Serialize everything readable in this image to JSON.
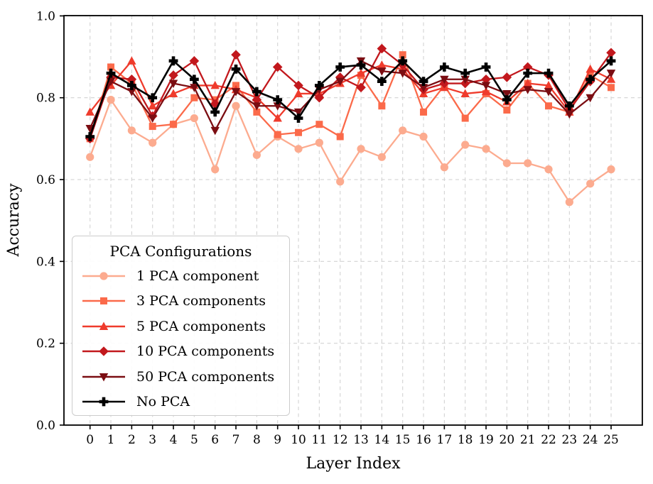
{
  "figure": {
    "background": "#ffffff"
  },
  "chart_data": {
    "type": "line",
    "title": "",
    "xlabel": "Layer Index",
    "ylabel": "Accuracy",
    "x": [
      0,
      1,
      2,
      3,
      4,
      5,
      6,
      7,
      8,
      9,
      10,
      11,
      12,
      13,
      14,
      15,
      16,
      17,
      18,
      19,
      20,
      21,
      22,
      23,
      24,
      25
    ],
    "xticklabels": [
      "0",
      "1",
      "2",
      "3",
      "4",
      "5",
      "6",
      "7",
      "8",
      "9",
      "10",
      "11",
      "12",
      "13",
      "14",
      "15",
      "16",
      "17",
      "18",
      "19",
      "20",
      "21",
      "22",
      "23",
      "24",
      "25"
    ],
    "ylim": [
      0.0,
      1.0
    ],
    "yticks": [
      0.0,
      0.2,
      0.4,
      0.6,
      0.8,
      1.0
    ],
    "yticklabels": [
      "0.0",
      "0.2",
      "0.4",
      "0.6",
      "0.8",
      "1.0"
    ],
    "grid": true,
    "grid_color": "#d3d3d3",
    "legend": {
      "title": "PCA Configurations",
      "position": "lower left"
    },
    "series": [
      {
        "name": "1 PCA component",
        "color": "#fcab8f",
        "marker": "circle",
        "values": [
          0.655,
          0.795,
          0.72,
          0.69,
          0.735,
          0.75,
          0.625,
          0.78,
          0.66,
          0.705,
          0.675,
          0.69,
          0.595,
          0.675,
          0.655,
          0.72,
          0.705,
          0.63,
          0.685,
          0.675,
          0.64,
          0.64,
          0.625,
          0.545,
          0.59,
          0.625
        ]
      },
      {
        "name": "3 PCA components",
        "color": "#fb6a4a",
        "marker": "square",
        "values": [
          0.7,
          0.875,
          0.835,
          0.73,
          0.735,
          0.8,
          0.795,
          0.83,
          0.765,
          0.71,
          0.715,
          0.735,
          0.705,
          0.855,
          0.78,
          0.905,
          0.765,
          0.83,
          0.75,
          0.81,
          0.77,
          0.835,
          0.78,
          0.765,
          0.855,
          0.825
        ]
      },
      {
        "name": "5 PCA components",
        "color": "#ef3b2c",
        "marker": "triangle-up",
        "values": [
          0.765,
          0.83,
          0.89,
          0.78,
          0.81,
          0.83,
          0.83,
          0.82,
          0.8,
          0.75,
          0.81,
          0.81,
          0.835,
          0.86,
          0.88,
          0.87,
          0.81,
          0.825,
          0.81,
          0.815,
          0.79,
          0.835,
          0.83,
          0.765,
          0.87,
          0.845
        ]
      },
      {
        "name": "10 PCA components",
        "color": "#c2181d",
        "marker": "diamond",
        "values": [
          0.7,
          0.85,
          0.845,
          0.755,
          0.855,
          0.89,
          0.785,
          0.905,
          0.795,
          0.875,
          0.83,
          0.8,
          0.85,
          0.825,
          0.92,
          0.88,
          0.82,
          0.835,
          0.835,
          0.845,
          0.85,
          0.875,
          0.855,
          0.77,
          0.84,
          0.91
        ]
      },
      {
        "name": "50 PCA components",
        "color": "#7b0d12",
        "marker": "triangle-down",
        "values": [
          0.725,
          0.84,
          0.815,
          0.75,
          0.835,
          0.825,
          0.72,
          0.815,
          0.78,
          0.78,
          0.765,
          0.82,
          0.84,
          0.89,
          0.865,
          0.86,
          0.825,
          0.845,
          0.845,
          0.83,
          0.81,
          0.82,
          0.815,
          0.76,
          0.8,
          0.86
        ]
      },
      {
        "name": "No PCA",
        "color": "#000000",
        "marker": "plus",
        "values": [
          0.705,
          0.86,
          0.83,
          0.8,
          0.89,
          0.845,
          0.765,
          0.87,
          0.815,
          0.795,
          0.75,
          0.83,
          0.875,
          0.88,
          0.84,
          0.89,
          0.84,
          0.875,
          0.86,
          0.875,
          0.795,
          0.86,
          0.86,
          0.78,
          0.845,
          0.89
        ]
      }
    ]
  }
}
